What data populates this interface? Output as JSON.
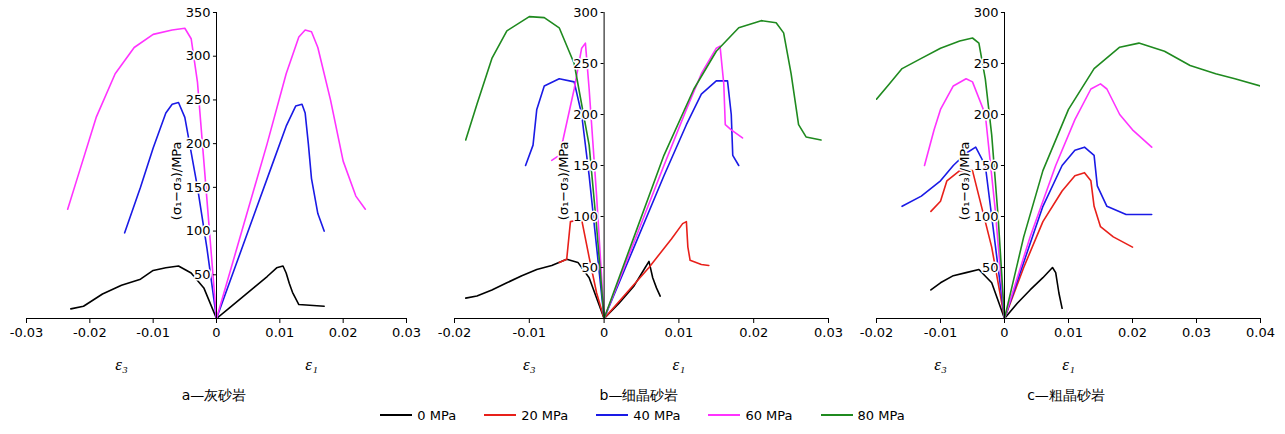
{
  "chart_data": [
    {
      "type": "line",
      "title": "a—灰砂岩",
      "ylabel": "(σ₁−σ₃)/MPa",
      "xlabel_left": "ε₃",
      "xlabel_right": "ε₁",
      "xlim": [
        -0.03,
        0.03
      ],
      "xticks": [
        -0.03,
        -0.02,
        -0.01,
        0,
        0.01,
        0.02,
        0.03
      ],
      "ylim": [
        0,
        350
      ],
      "yticks": [
        50,
        100,
        150,
        200,
        250,
        300,
        350
      ],
      "legend": "bottom",
      "series": [
        {
          "name": "0 MPa",
          "color": "#000000",
          "x": [
            -0.023,
            -0.021,
            -0.018,
            -0.015,
            -0.012,
            -0.01,
            -0.008,
            -0.006,
            -0.004,
            -0.002,
            0,
            0.002,
            0.004,
            0.006,
            0.008,
            0.0095,
            0.0105,
            0.011,
            0.0115,
            0.012,
            0.013,
            0.017
          ],
          "values": [
            11,
            14,
            28,
            38,
            45,
            55,
            58,
            60,
            52,
            35,
            0,
            12,
            24,
            36,
            48,
            58,
            60,
            52,
            40,
            30,
            16,
            14
          ]
        },
        {
          "name": "40 MPa",
          "color": "#1a1ae6",
          "x": [
            -0.0145,
            -0.012,
            -0.01,
            -0.008,
            -0.007,
            -0.006,
            -0.005,
            -0.003,
            -0.0015,
            0,
            0.003,
            0.006,
            0.009,
            0.011,
            0.0125,
            0.0135,
            0.014,
            0.0145,
            0.015,
            0.016,
            0.017
          ],
          "values": [
            98,
            150,
            195,
            235,
            245,
            247,
            230,
            150,
            80,
            0,
            60,
            120,
            180,
            220,
            243,
            245,
            235,
            200,
            160,
            120,
            100
          ]
        },
        {
          "name": "60 MPa",
          "color": "#ff33ff",
          "x": [
            -0.0235,
            -0.022,
            -0.019,
            -0.016,
            -0.013,
            -0.01,
            -0.007,
            -0.005,
            -0.004,
            -0.003,
            -0.002,
            -0.001,
            0,
            0.004,
            0.008,
            0.011,
            0.013,
            0.014,
            0.015,
            0.016,
            0.018,
            0.02,
            0.022,
            0.0235
          ],
          "values": [
            125,
            160,
            230,
            280,
            310,
            325,
            330,
            332,
            320,
            270,
            180,
            90,
            0,
            100,
            200,
            280,
            322,
            330,
            328,
            310,
            250,
            180,
            140,
            125
          ]
        }
      ]
    },
    {
      "type": "line",
      "title": "b—细晶砂岩",
      "ylabel": "(σ₁−σ₃)/MPa",
      "xlabel_left": "ε₃",
      "xlabel_right": "ε₁",
      "xlim": [
        -0.02,
        0.03
      ],
      "xticks": [
        -0.02,
        -0.01,
        0,
        0.01,
        0.02,
        0.03
      ],
      "ylim": [
        0,
        300
      ],
      "yticks": [
        50,
        100,
        150,
        200,
        250,
        300
      ],
      "legend": "bottom",
      "series": [
        {
          "name": "0 MPa",
          "color": "#000000",
          "x": [
            -0.0185,
            -0.017,
            -0.015,
            -0.013,
            -0.011,
            -0.009,
            -0.007,
            -0.005,
            -0.0035,
            -0.002,
            0,
            0.002,
            0.004,
            0.0055,
            0.006,
            0.0065,
            0.007,
            0.0075
          ],
          "values": [
            20,
            22,
            28,
            35,
            42,
            48,
            52,
            58,
            55,
            40,
            0,
            15,
            32,
            50,
            56,
            40,
            30,
            22
          ]
        },
        {
          "name": "20 MPa",
          "color": "#e8201a",
          "x": [
            -0.006,
            -0.005,
            -0.0045,
            -0.003,
            -0.002,
            -0.001,
            0,
            0.003,
            0.006,
            0.009,
            0.0105,
            0.011,
            0.0112,
            0.0115,
            0.013,
            0.014
          ],
          "values": [
            55,
            58,
            95,
            97,
            60,
            25,
            0,
            25,
            50,
            78,
            93,
            95,
            70,
            57,
            53,
            52
          ]
        },
        {
          "name": "40 MPa",
          "color": "#1a1ae6",
          "x": [
            -0.0105,
            -0.0095,
            -0.009,
            -0.008,
            -0.006,
            -0.004,
            -0.003,
            -0.002,
            -0.001,
            0,
            0.004,
            0.008,
            0.011,
            0.013,
            0.015,
            0.0165,
            0.017,
            0.0172,
            0.018
          ],
          "values": [
            150,
            170,
            205,
            228,
            235,
            232,
            200,
            140,
            70,
            0,
            70,
            140,
            190,
            220,
            233,
            233,
            200,
            160,
            150
          ]
        },
        {
          "name": "60 MPa",
          "color": "#ff33ff",
          "x": [
            -0.007,
            -0.006,
            -0.0055,
            -0.004,
            -0.003,
            -0.0025,
            -0.002,
            -0.001,
            0,
            0.004,
            0.008,
            0.011,
            0.013,
            0.015,
            0.0155,
            0.016,
            0.0162,
            0.017,
            0.0185
          ],
          "values": [
            155,
            160,
            175,
            225,
            265,
            270,
            225,
            120,
            0,
            75,
            150,
            205,
            240,
            265,
            267,
            230,
            190,
            185,
            177
          ]
        },
        {
          "name": "80 MPa",
          "color": "#1f8a1f",
          "x": [
            -0.0185,
            -0.017,
            -0.015,
            -0.013,
            -0.01,
            -0.008,
            -0.006,
            -0.004,
            -0.002,
            -0.001,
            0,
            0.004,
            0.008,
            0.012,
            0.015,
            0.018,
            0.021,
            0.023,
            0.024,
            0.025,
            0.026,
            0.027,
            0.029
          ],
          "values": [
            175,
            210,
            255,
            282,
            296,
            295,
            285,
            250,
            170,
            90,
            0,
            80,
            160,
            225,
            262,
            285,
            292,
            290,
            280,
            240,
            190,
            178,
            175
          ]
        }
      ]
    },
    {
      "type": "line",
      "title": "c—粗晶砂岩",
      "ylabel": "(σ₁−σ₃)/MPa",
      "xlabel_left": "ε₃",
      "xlabel_right": "ε₁",
      "xlim": [
        -0.02,
        0.04
      ],
      "xticks": [
        -0.02,
        -0.01,
        0,
        0.01,
        0.02,
        0.03,
        0.04
      ],
      "ylim": [
        0,
        300
      ],
      "yticks": [
        50,
        100,
        150,
        200,
        250,
        300
      ],
      "legend": "bottom",
      "series": [
        {
          "name": "0 MPa",
          "color": "#000000",
          "x": [
            -0.0115,
            -0.01,
            -0.008,
            -0.006,
            -0.004,
            -0.002,
            0,
            0.002,
            0.004,
            0.006,
            0.0075,
            0.008,
            0.0085,
            0.009
          ],
          "values": [
            28,
            35,
            42,
            45,
            48,
            35,
            0,
            15,
            28,
            40,
            50,
            45,
            25,
            10
          ]
        },
        {
          "name": "20 MPa",
          "color": "#e8201a",
          "x": [
            -0.0115,
            -0.01,
            -0.009,
            -0.007,
            -0.005,
            -0.004,
            -0.002,
            0,
            0.003,
            0.006,
            0.009,
            0.011,
            0.0125,
            0.0135,
            0.014,
            0.015,
            0.017,
            0.02
          ],
          "values": [
            105,
            115,
            135,
            145,
            145,
            120,
            70,
            0,
            50,
            95,
            125,
            140,
            143,
            135,
            110,
            90,
            80,
            70
          ]
        },
        {
          "name": "40 MPa",
          "color": "#1a1ae6",
          "x": [
            -0.016,
            -0.013,
            -0.01,
            -0.008,
            -0.006,
            -0.0045,
            -0.003,
            -0.002,
            0,
            0.003,
            0.006,
            0.009,
            0.011,
            0.0125,
            0.014,
            0.0145,
            0.016,
            0.019,
            0.023
          ],
          "values": [
            110,
            120,
            135,
            150,
            162,
            168,
            150,
            100,
            0,
            55,
            110,
            150,
            165,
            168,
            160,
            130,
            110,
            102,
            102
          ]
        },
        {
          "name": "60 MPa",
          "color": "#ff33ff",
          "x": [
            -0.0125,
            -0.011,
            -0.01,
            -0.008,
            -0.006,
            -0.005,
            -0.003,
            -0.0015,
            0,
            0.004,
            0.008,
            0.011,
            0.0135,
            0.015,
            0.016,
            0.018,
            0.02,
            0.023
          ],
          "values": [
            150,
            185,
            205,
            228,
            235,
            232,
            200,
            110,
            0,
            80,
            150,
            195,
            225,
            230,
            225,
            200,
            185,
            168
          ]
        },
        {
          "name": "80 MPa",
          "color": "#1f8a1f",
          "x": [
            -0.02,
            -0.018,
            -0.016,
            -0.013,
            -0.01,
            -0.007,
            -0.005,
            -0.004,
            -0.003,
            -0.002,
            -0.001,
            0,
            0.003,
            0.006,
            0.01,
            0.014,
            0.018,
            0.021,
            0.025,
            0.029,
            0.033,
            0.036,
            0.04
          ],
          "values": [
            215,
            230,
            245,
            255,
            265,
            272,
            275,
            270,
            235,
            180,
            100,
            0,
            80,
            145,
            205,
            245,
            266,
            270,
            262,
            248,
            240,
            235,
            228
          ]
        }
      ]
    }
  ]
}
